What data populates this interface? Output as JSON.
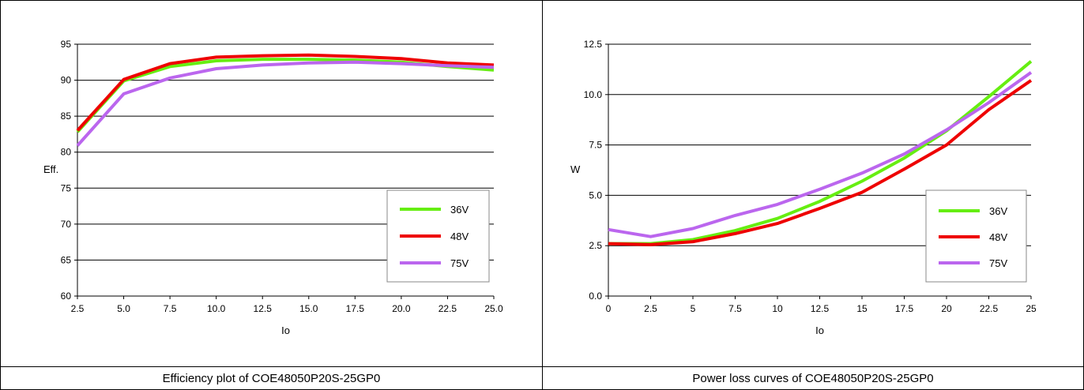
{
  "captions": {
    "left": "Efficiency plot of COE48050P20S-25GP0",
    "right": "Power loss curves of COE48050P20S-25GP0"
  },
  "chart_data": [
    {
      "type": "line",
      "xlabel": "Io",
      "ylabel": "Eff.",
      "xlim": [
        2.5,
        25
      ],
      "ylim": [
        60,
        95
      ],
      "x_ticks": [
        "2.5",
        "5.0",
        "7.5",
        "10.0",
        "12.5",
        "15.0",
        "17.5",
        "20.0",
        "22.5",
        "25.0"
      ],
      "y_ticks": [
        "60",
        "65",
        "70",
        "75",
        "80",
        "85",
        "90",
        "95"
      ],
      "grid": "horizontal",
      "legend_position": "bottom-right",
      "series": [
        {
          "name": "36V",
          "color": "#66ee11",
          "x": [
            2.5,
            5,
            7.5,
            10,
            12.5,
            15,
            17.5,
            20,
            22.5,
            25
          ],
          "values": [
            82.8,
            89.9,
            91.9,
            92.7,
            92.9,
            92.9,
            92.8,
            92.5,
            91.9,
            91.4
          ]
        },
        {
          "name": "48V",
          "color": "#ee0000",
          "x": [
            2.5,
            5,
            7.5,
            10,
            12.5,
            15,
            17.5,
            20,
            22.5,
            25
          ],
          "values": [
            83.0,
            90.1,
            92.3,
            93.2,
            93.4,
            93.5,
            93.3,
            93.0,
            92.4,
            92.1
          ]
        },
        {
          "name": "75V",
          "color": "#bb66ee",
          "x": [
            2.5,
            5,
            7.5,
            10,
            12.5,
            15,
            17.5,
            20,
            22.5,
            25
          ],
          "values": [
            80.9,
            88.1,
            90.3,
            91.6,
            92.1,
            92.4,
            92.5,
            92.3,
            92.0,
            91.8
          ]
        }
      ]
    },
    {
      "type": "line",
      "xlabel": "Io",
      "ylabel": "W",
      "xlim": [
        0,
        25
      ],
      "ylim": [
        0,
        12.5
      ],
      "x_ticks": [
        "0",
        "2.5",
        "5",
        "7.5",
        "10",
        "12.5",
        "15",
        "17.5",
        "20",
        "22.5",
        "25"
      ],
      "y_ticks": [
        "0.0",
        "2.5",
        "5.0",
        "7.5",
        "10.0",
        "12.5"
      ],
      "grid": "horizontal",
      "legend_position": "bottom-right",
      "series": [
        {
          "name": "36V",
          "color": "#66ee11",
          "x": [
            0,
            2.5,
            5,
            7.5,
            10,
            12.5,
            15,
            17.5,
            20,
            22.5,
            25
          ],
          "values": [
            2.6,
            2.6,
            2.8,
            3.25,
            3.85,
            4.7,
            5.7,
            6.85,
            8.2,
            9.9,
            11.65
          ]
        },
        {
          "name": "48V",
          "color": "#ee0000",
          "x": [
            0,
            2.5,
            5,
            7.5,
            10,
            12.5,
            15,
            17.5,
            20,
            22.5,
            25
          ],
          "values": [
            2.6,
            2.55,
            2.7,
            3.1,
            3.6,
            4.35,
            5.15,
            6.3,
            7.5,
            9.25,
            10.7
          ]
        },
        {
          "name": "75V",
          "color": "#bb66ee",
          "x": [
            0,
            2.5,
            5,
            7.5,
            10,
            12.5,
            15,
            17.5,
            20,
            22.5,
            25
          ],
          "values": [
            3.3,
            2.95,
            3.35,
            4.0,
            4.55,
            5.3,
            6.1,
            7.05,
            8.25,
            9.6,
            11.1
          ]
        }
      ]
    }
  ]
}
